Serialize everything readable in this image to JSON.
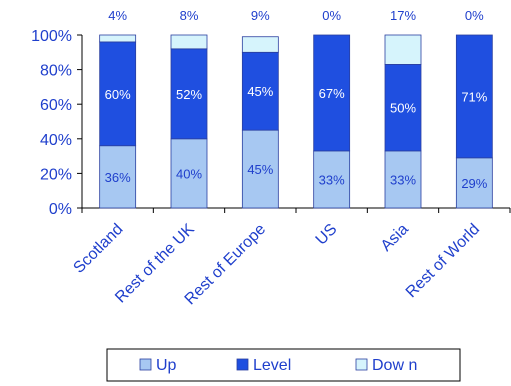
{
  "chart_data": {
    "type": "bar",
    "stacked": true,
    "categories": [
      "Scotland",
      "Rest of the UK",
      "Rest of Europe",
      "US",
      "Asia",
      "Rest of World"
    ],
    "series": [
      {
        "name": "Up",
        "values": [
          36,
          40,
          45,
          33,
          33,
          29
        ],
        "labels": [
          "36%",
          "40%",
          "45%",
          "33%",
          "33%",
          "29%"
        ]
      },
      {
        "name": "Level",
        "values": [
          60,
          52,
          45,
          67,
          50,
          71
        ],
        "labels": [
          "60%",
          "52%",
          "45%",
          "67%",
          "50%",
          "71%"
        ]
      },
      {
        "name": "Dow n",
        "values": [
          4,
          8,
          9,
          0,
          17,
          0
        ],
        "labels": [
          "4%",
          "8%",
          "9%",
          "0%",
          "17%",
          "0%"
        ]
      }
    ],
    "y_ticks": [
      "0%",
      "20%",
      "40%",
      "60%",
      "80%",
      "100%"
    ],
    "ylim": [
      0,
      100
    ],
    "grid": false,
    "legend_position": "bottom",
    "colors": {
      "Up": "#a7c8f2",
      "Level": "#1f4fe0",
      "Dow n": "#d6f4fc"
    }
  }
}
